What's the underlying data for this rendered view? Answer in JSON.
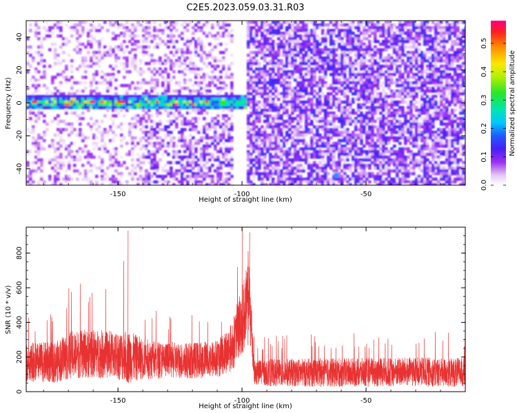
{
  "title": "C2E5.2023.059.03.31.R03",
  "colors": {
    "snr_line": "#e83232",
    "axis": "#000000",
    "background": "#ffffff"
  },
  "chart_data": [
    {
      "type": "heatmap",
      "title": "C2E5.2023.059.03.31.R03",
      "xlabel": "Height of straight line (km)",
      "ylabel": "Frequency (Hz)",
      "xlim": [
        -187,
        -10
      ],
      "ylim": [
        -50,
        50
      ],
      "xticks": [
        {
          "value": -150,
          "label": "-150"
        },
        {
          "value": -100,
          "label": "-100"
        },
        {
          "value": -50,
          "label": "-50"
        }
      ],
      "yticks": [
        {
          "value": -40,
          "label": "-40"
        },
        {
          "value": -20,
          "label": "-20"
        },
        {
          "value": 0,
          "label": "0"
        },
        {
          "value": 20,
          "label": "20"
        },
        {
          "value": 40,
          "label": "40"
        }
      ],
      "colorbar": {
        "label": "Normalized spectral amplitude",
        "range": [
          0.0,
          0.58
        ],
        "colormap": "rainbow (magenta-blue-cyan-green-yellow-red)",
        "ticks": [
          {
            "value": 0.0,
            "label": "0.0"
          },
          {
            "value": 0.1,
            "label": "0.1"
          },
          {
            "value": 0.2,
            "label": "0.2"
          },
          {
            "value": 0.3,
            "label": "0.3"
          },
          {
            "value": 0.4,
            "label": "0.4"
          },
          {
            "value": 0.5,
            "label": "0.5"
          }
        ]
      },
      "features": {
        "band_frequency_hz": 0,
        "band_half_width_hz": 4,
        "band_x_range": [
          -187,
          -98
        ],
        "band_peak_amplitude": 0.55,
        "blank_column_x_range": [
          -104,
          -98
        ],
        "sparse_region_x_range": [
          -187,
          -140
        ],
        "dense_region_x_range": [
          -98,
          -10
        ],
        "isolated_blob": {
          "x": -62,
          "y": -44,
          "amplitude": 0.2
        }
      }
    },
    {
      "type": "line",
      "xlabel": "Height of straight line (km)",
      "ylabel": "SNR (10 * v/v)",
      "xlim": [
        -187,
        -10
      ],
      "ylim": [
        0,
        950
      ],
      "xticks": [
        {
          "value": -150,
          "label": "-150"
        },
        {
          "value": -100,
          "label": "-100"
        },
        {
          "value": -50,
          "label": "-50"
        }
      ],
      "yticks": [
        {
          "value": 0,
          "label": "0"
        },
        {
          "value": 200,
          "label": "200"
        },
        {
          "value": 400,
          "label": "400"
        },
        {
          "value": 600,
          "label": "600"
        },
        {
          "value": 800,
          "label": "800"
        }
      ],
      "series": [
        {
          "color": "#e83232",
          "profile": [
            {
              "x": -187,
              "mean": 170,
              "spread": 160,
              "peak": 460
            },
            {
              "x": -175,
              "mean": 170,
              "spread": 170,
              "peak": 470
            },
            {
              "x": -170,
              "mean": 210,
              "spread": 200,
              "peak": 650
            },
            {
              "x": -160,
              "mean": 220,
              "spread": 200,
              "peak": 630
            },
            {
              "x": -150,
              "mean": 210,
              "spread": 200,
              "peak": 600
            },
            {
              "x": -146,
              "mean": 200,
              "spread": 220,
              "peak": 930
            },
            {
              "x": -140,
              "mean": 190,
              "spread": 170,
              "peak": 540
            },
            {
              "x": -130,
              "mean": 180,
              "spread": 150,
              "peak": 480
            },
            {
              "x": -120,
              "mean": 180,
              "spread": 150,
              "peak": 460
            },
            {
              "x": -110,
              "mean": 190,
              "spread": 160,
              "peak": 490
            },
            {
              "x": -104,
              "mean": 260,
              "spread": 200,
              "peak": 560
            },
            {
              "x": -100,
              "mean": 420,
              "spread": 300,
              "peak": 950
            },
            {
              "x": -97,
              "mean": 520,
              "spread": 350,
              "peak": 920
            },
            {
              "x": -95,
              "mean": 110,
              "spread": 110,
              "peak": 330
            },
            {
              "x": -60,
              "mean": 110,
              "spread": 120,
              "peak": 340
            },
            {
              "x": -30,
              "mean": 115,
              "spread": 120,
              "peak": 350
            },
            {
              "x": -10,
              "mean": 110,
              "spread": 120,
              "peak": 340
            }
          ],
          "x_step": 0.045
        }
      ]
    }
  ]
}
